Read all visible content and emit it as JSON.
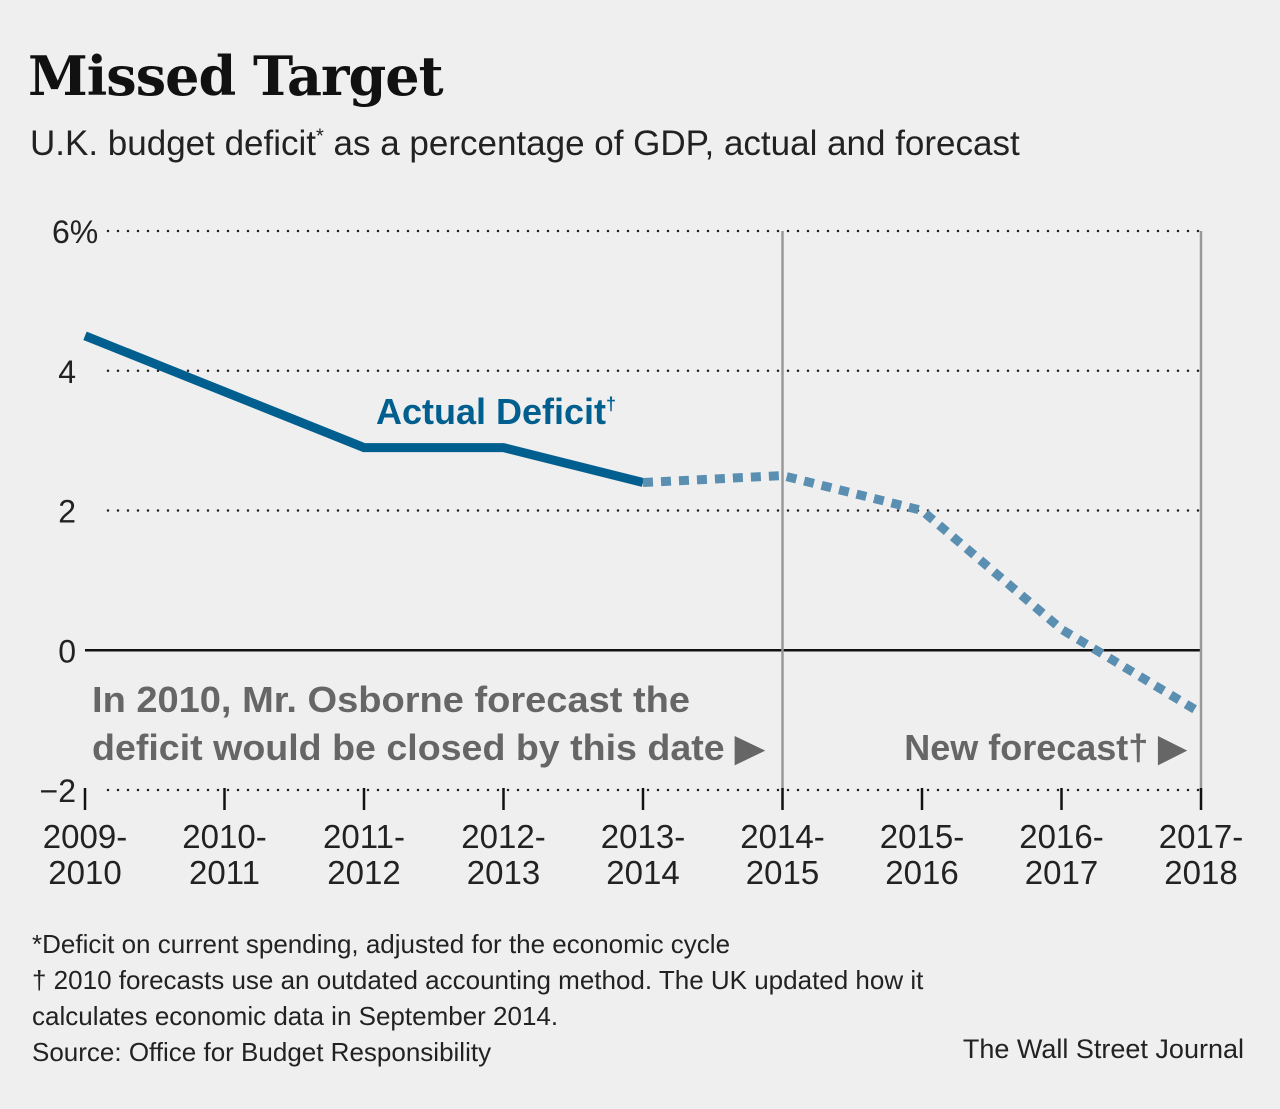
{
  "chart_data": {
    "type": "line",
    "title": "Missed Target",
    "subtitle": "U.K. budget deficit",
    "subtitle_mark": "*",
    "subtitle_rest": " as a percentage of GDP, actual and forecast",
    "categories": [
      "2009-2010",
      "2010-2011",
      "2011-2012",
      "2012-2013",
      "2013-2014",
      "2014-2015",
      "2015-2016",
      "2016-2017",
      "2017-2018"
    ],
    "x_tick_labels": [
      [
        "2009-",
        "2010"
      ],
      [
        "2010-",
        "2011"
      ],
      [
        "2011-",
        "2012"
      ],
      [
        "2012-",
        "2013"
      ],
      [
        "2013-",
        "2014"
      ],
      [
        "2014-",
        "2015"
      ],
      [
        "2015-",
        "2016"
      ],
      [
        "2016-",
        "2017"
      ],
      [
        "2017-",
        "2018"
      ]
    ],
    "ylim": [
      -2,
      6
    ],
    "y_ticks": [
      -2,
      0,
      2,
      4,
      6
    ],
    "y_tick_labels": [
      "−2",
      "0",
      "2",
      "4",
      "6%"
    ],
    "grid": "horizontal dotted",
    "series": [
      {
        "name": "Actual Deficit",
        "name_mark": "†",
        "style": "solid",
        "color": "#005f8f",
        "values": [
          4.5,
          3.7,
          2.9,
          2.9,
          2.4,
          null,
          null,
          null,
          null
        ]
      },
      {
        "style": "dotted",
        "color": "#5a8fb2",
        "values": [
          null,
          null,
          null,
          null,
          2.4,
          2.5,
          2.0,
          0.3,
          -0.9
        ]
      }
    ],
    "reference_lines": [
      "2014-2015",
      "2017-2018"
    ],
    "annotations": [
      {
        "lines": [
          "In 2010, Mr. Osborne forecast the",
          "deficit would be closed by this date ▶"
        ],
        "target": "2014-2015"
      },
      {
        "lines": [
          "New forecast† ▶"
        ],
        "target": "2017-2018"
      }
    ]
  },
  "notes": [
    "*Deficit on current spending, adjusted for the economic cycle",
    "† 2010 forecasts use an outdated accounting method. The UK updated how it",
    "calculates economic data in September 2014.",
    "Source: Office for Budget Responsibility"
  ],
  "credit": "The Wall Street Journal"
}
